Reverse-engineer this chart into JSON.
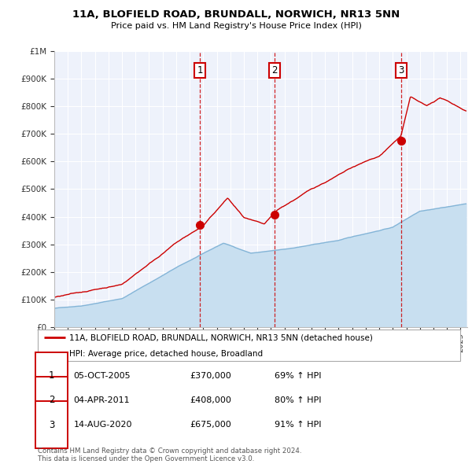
{
  "title": "11A, BLOFIELD ROAD, BRUNDALL, NORWICH, NR13 5NN",
  "subtitle": "Price paid vs. HM Land Registry's House Price Index (HPI)",
  "hpi_label": "HPI: Average price, detached house, Broadland",
  "property_label": "11A, BLOFIELD ROAD, BRUNDALL, NORWICH, NR13 5NN (detached house)",
  "sale_color": "#cc0000",
  "hpi_color": "#7aafd4",
  "hpi_fill": "#c8dff0",
  "plot_bg": "#eef2fb",
  "ylim": [
    0,
    1000000
  ],
  "xlim_start": 1995.0,
  "xlim_end": 2025.5,
  "sales": [
    {
      "year": 2005.75,
      "price": 370000,
      "label": "1",
      "date": "05-OCT-2005",
      "pct": "69%"
    },
    {
      "year": 2011.25,
      "price": 408000,
      "label": "2",
      "date": "04-APR-2011",
      "pct": "80%"
    },
    {
      "year": 2020.6,
      "price": 675000,
      "label": "3",
      "date": "14-AUG-2020",
      "pct": "91%"
    }
  ],
  "footer": "Contains HM Land Registry data © Crown copyright and database right 2024.\nThis data is licensed under the Open Government Licence v3.0.",
  "yticks": [
    0,
    100000,
    200000,
    300000,
    400000,
    500000,
    600000,
    700000,
    800000,
    900000,
    1000000
  ],
  "ytick_labels": [
    "£0",
    "£100K",
    "£200K",
    "£300K",
    "£400K",
    "£500K",
    "£600K",
    "£700K",
    "£800K",
    "£900K",
    "£1M"
  ]
}
